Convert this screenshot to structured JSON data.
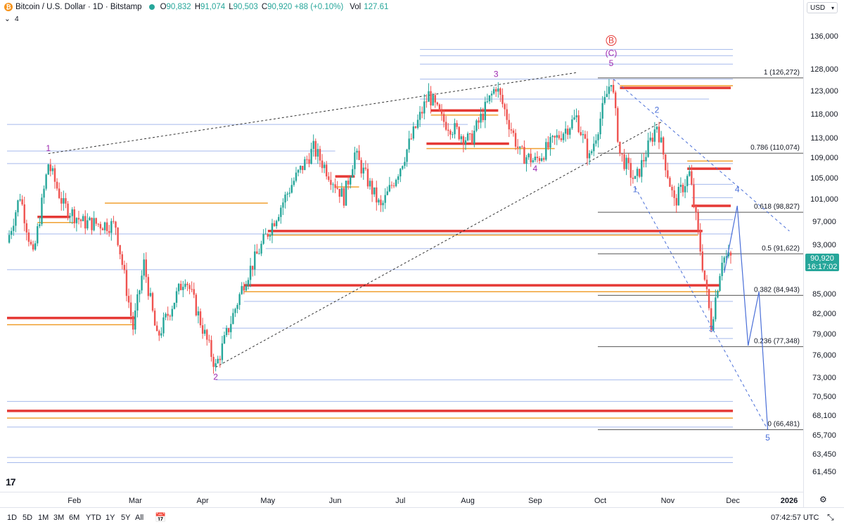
{
  "header": {
    "coin_symbol": "₿",
    "title": "Bitcoin / U.S. Dollar · 1D · Bitstamp",
    "ohlc": [
      {
        "key": "O",
        "value": "90,832"
      },
      {
        "key": "H",
        "value": "91,074"
      },
      {
        "key": "L",
        "value": "90,503"
      },
      {
        "key": "C",
        "value": "90,920 +88 (+0.10%)"
      }
    ],
    "vol_label": "Vol",
    "vol_value": "127.61",
    "indicator_count": "4",
    "indicator_chevron": "⌄"
  },
  "price_axis": {
    "currency": "USD",
    "ticks": [
      "136,000",
      "128,000",
      "123,000",
      "118,000",
      "113,000",
      "109,000",
      "105,000",
      "101,000",
      "97,000",
      "93,000",
      "85,000",
      "82,000",
      "79,000",
      "76,000",
      "73,000",
      "70,500",
      "68,100",
      "65,700",
      "63,450",
      "61,450"
    ],
    "current_price": "90,920",
    "countdown": "16:17:02"
  },
  "time_axis": {
    "labels": [
      "Feb",
      "Mar",
      "Apr",
      "May",
      "Jun",
      "Jul",
      "Aug",
      "Sep",
      "Oct",
      "Nov",
      "Dec",
      "2026"
    ]
  },
  "bottom_bar": {
    "ranges": [
      "1D",
      "5D",
      "1M",
      "3M",
      "6M",
      "YTD",
      "1Y",
      "5Y",
      "All"
    ],
    "clock": "07:42:57 UTC"
  },
  "logo_text": "17",
  "colors": {
    "up": "#26a69a",
    "down": "#ef5350",
    "wave_purple": "#9c27b0",
    "wave_blue": "#4a6fd8",
    "zone_red": "#e53935",
    "zone_gold": "#f0a030",
    "level_blue": "#8fa8e8",
    "fib_gray": "#555555"
  },
  "chart_data": {
    "type": "candlestick",
    "title": "Bitcoin / U.S. Dollar · 1D · Bitstamp",
    "x_range": [
      "2025-01-01",
      "2025-12-31"
    ],
    "y_range": [
      60000,
      140000
    ],
    "y_scale": "log",
    "ohlc_last": {
      "open": 90832,
      "high": 91074,
      "low": 90503,
      "close": 90920,
      "change": 88,
      "change_pct": 0.1
    },
    "volume_last": 127.61,
    "price_path": [
      [
        "2025-01-01",
        93500
      ],
      [
        "2025-01-07",
        102000
      ],
      [
        "2025-01-13",
        91000
      ],
      [
        "2025-01-20",
        108000
      ],
      [
        "2025-01-27",
        100000
      ],
      [
        "2025-02-05",
        97000
      ],
      [
        "2025-02-20",
        96500
      ],
      [
        "2025-02-28",
        80000
      ],
      [
        "2025-03-05",
        90000
      ],
      [
        "2025-03-11",
        78500
      ],
      [
        "2025-03-24",
        88000
      ],
      [
        "2025-04-07",
        74500
      ],
      [
        "2025-04-20",
        87000
      ],
      [
        "2025-04-30",
        94500
      ],
      [
        "2025-05-12",
        104000
      ],
      [
        "2025-05-22",
        111000
      ],
      [
        "2025-06-05",
        101500
      ],
      [
        "2025-06-10",
        110000
      ],
      [
        "2025-06-22",
        99500
      ],
      [
        "2025-07-01",
        107500
      ],
      [
        "2025-07-14",
        122500
      ],
      [
        "2025-07-20",
        117000
      ],
      [
        "2025-08-02",
        112500
      ],
      [
        "2025-08-14",
        124500
      ],
      [
        "2025-08-25",
        110000
      ],
      [
        "2025-09-01",
        108500
      ],
      [
        "2025-09-20",
        117500
      ],
      [
        "2025-09-26",
        109000
      ],
      [
        "2025-10-06",
        126272
      ],
      [
        "2025-10-10",
        110000
      ],
      [
        "2025-10-17",
        104500
      ],
      [
        "2025-10-27",
        116000
      ],
      [
        "2025-11-04",
        100500
      ],
      [
        "2025-11-11",
        106000
      ],
      [
        "2025-11-21",
        80500
      ],
      [
        "2025-11-26",
        91000
      ],
      [
        "2025-11-30",
        90920
      ]
    ],
    "fib_levels": [
      {
        "ratio": "1",
        "price": 126272,
        "label": "1 (126,272)"
      },
      {
        "ratio": "0.786",
        "price": 110074,
        "label": "0.786 (110,074)"
      },
      {
        "ratio": "0.618",
        "price": 98827,
        "label": "0.618 (98,827)"
      },
      {
        "ratio": "0.5",
        "price": 91622,
        "label": "0.5 (91,622)"
      },
      {
        "ratio": "0.382",
        "price": 84943,
        "label": "0.382 (84,943)"
      },
      {
        "ratio": "0.236",
        "price": 77348,
        "label": "0.236 (77,348)"
      },
      {
        "ratio": "0",
        "price": 66481,
        "label": "0 (66,481)"
      }
    ],
    "red_zones": [
      {
        "from": "2025-01-15",
        "to": "2025-01-30",
        "price": 98000
      },
      {
        "from": "2025-01-01",
        "to": "2025-03-01",
        "price": 81500
      },
      {
        "from": "2025-06-01",
        "to": "2025-06-10",
        "price": 105500
      },
      {
        "from": "2025-07-15",
        "to": "2025-08-15",
        "price": 119000
      },
      {
        "from": "2025-07-13",
        "to": "2025-08-20",
        "price": 112000
      },
      {
        "from": "2025-05-01",
        "to": "2025-11-17",
        "price": 95500
      },
      {
        "from": "2025-04-20",
        "to": "2025-11-25",
        "price": 86500
      },
      {
        "from": "2025-10-10",
        "to": "2025-11-30",
        "price": 124000
      },
      {
        "from": "2025-11-10",
        "to": "2025-11-30",
        "price": 107000
      },
      {
        "from": "2025-11-12",
        "to": "2025-11-30",
        "price": 100000
      },
      {
        "from": "2025-01-01",
        "to": "2025-12-01",
        "price": 68800
      }
    ],
    "wave_labels": [
      {
        "text": "1",
        "date": "2025-01-20",
        "price": 110500,
        "color": "purple"
      },
      {
        "text": "2",
        "date": "2025-04-07",
        "price": 72800,
        "color": "purple"
      },
      {
        "text": "3",
        "date": "2025-08-14",
        "price": 126500,
        "color": "purple"
      },
      {
        "text": "4",
        "date": "2025-09-01",
        "price": 106500,
        "color": "purple"
      },
      {
        "text": "5",
        "date": "2025-10-06",
        "price": 129000,
        "color": "purple"
      },
      {
        "text": "(C)",
        "date": "2025-10-06",
        "price": 131500,
        "color": "purple"
      },
      {
        "text": "B",
        "date": "2025-10-06",
        "price": 134500,
        "color": "red"
      },
      {
        "text": "1",
        "date": "2025-10-17",
        "price": 102500,
        "color": "blue"
      },
      {
        "text": "2",
        "date": "2025-10-27",
        "price": 118500,
        "color": "blue"
      },
      {
        "text": "3",
        "date": "2025-11-21",
        "price": 79500,
        "color": "blue"
      },
      {
        "text": "4",
        "date": "2025-12-03",
        "price": 102500,
        "color": "blue"
      },
      {
        "text": "5",
        "date": "2025-12-17",
        "price": 65200,
        "color": "blue"
      }
    ],
    "projection": [
      [
        "2025-11-27",
        88500
      ],
      [
        "2025-12-03",
        100000
      ],
      [
        "2025-12-08",
        77500
      ],
      [
        "2025-12-13",
        85500
      ],
      [
        "2025-12-17",
        66481
      ]
    ],
    "grid": false,
    "legend": "top-left"
  }
}
